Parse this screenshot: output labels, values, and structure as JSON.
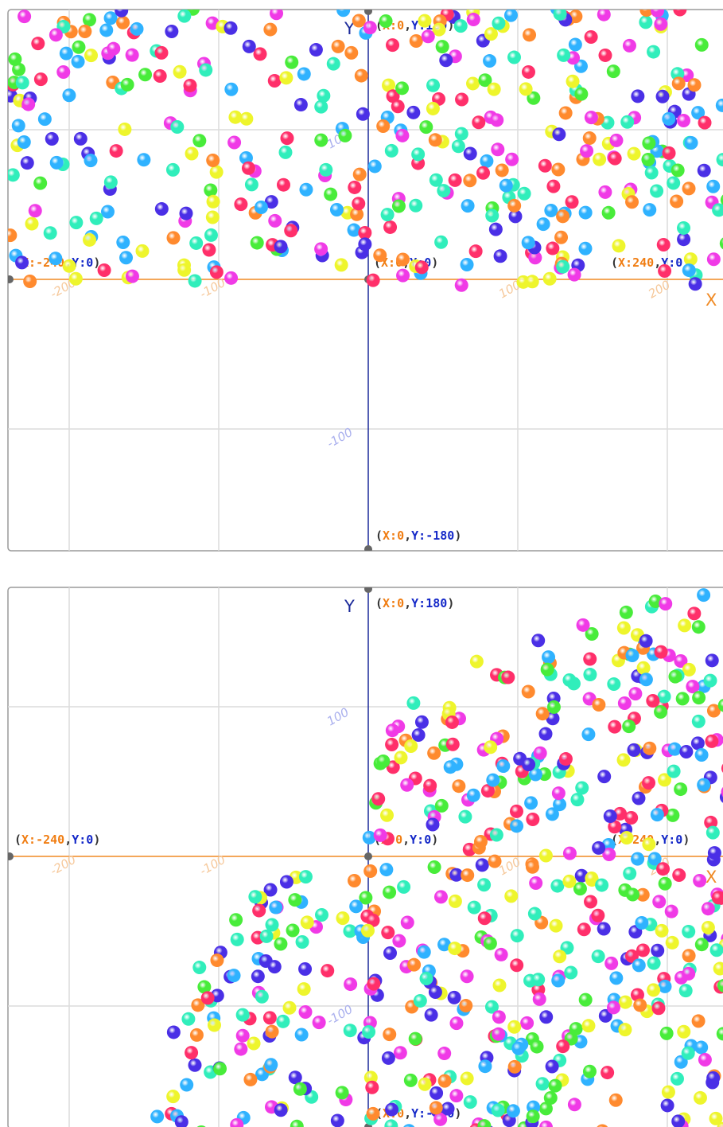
{
  "panels": [
    {
      "axis_x": "X",
      "axis_y": "Y",
      "labels": {
        "top": [
          "(",
          "X:0",
          ",",
          "Y:180",
          ")"
        ],
        "left": [
          "(",
          "X:-240",
          ",",
          "Y:0",
          ")"
        ],
        "origin": [
          "(",
          "X:0",
          ",",
          "Y:0",
          ")"
        ],
        "right": [
          "(",
          "X:240",
          ",",
          "Y:0",
          ")"
        ],
        "bottom": [
          "(",
          "X:0",
          ",",
          "Y:-180",
          ")"
        ]
      },
      "x_ticks": [
        "-200",
        "-100",
        "100",
        "200"
      ],
      "y_ticks": [
        "100",
        "-100"
      ]
    },
    {
      "axis_x": "X",
      "axis_y": "Y",
      "labels": {
        "top": [
          "(",
          "X:0",
          ",",
          "Y:180",
          ")"
        ],
        "left": [
          "(",
          "X:-240",
          ",",
          "Y:0",
          ")"
        ],
        "origin": [
          "(",
          "X:0",
          ",",
          "Y:0",
          ")"
        ],
        "right": [
          "(",
          "X:240",
          ",",
          "Y:0",
          ")"
        ],
        "bottom": [
          "(",
          "X:0",
          ",",
          "Y:-180",
          ")"
        ]
      },
      "x_ticks": [
        "-200",
        "-100",
        "100",
        "200"
      ],
      "y_ticks": [
        "100",
        "-100"
      ]
    }
  ]
}
